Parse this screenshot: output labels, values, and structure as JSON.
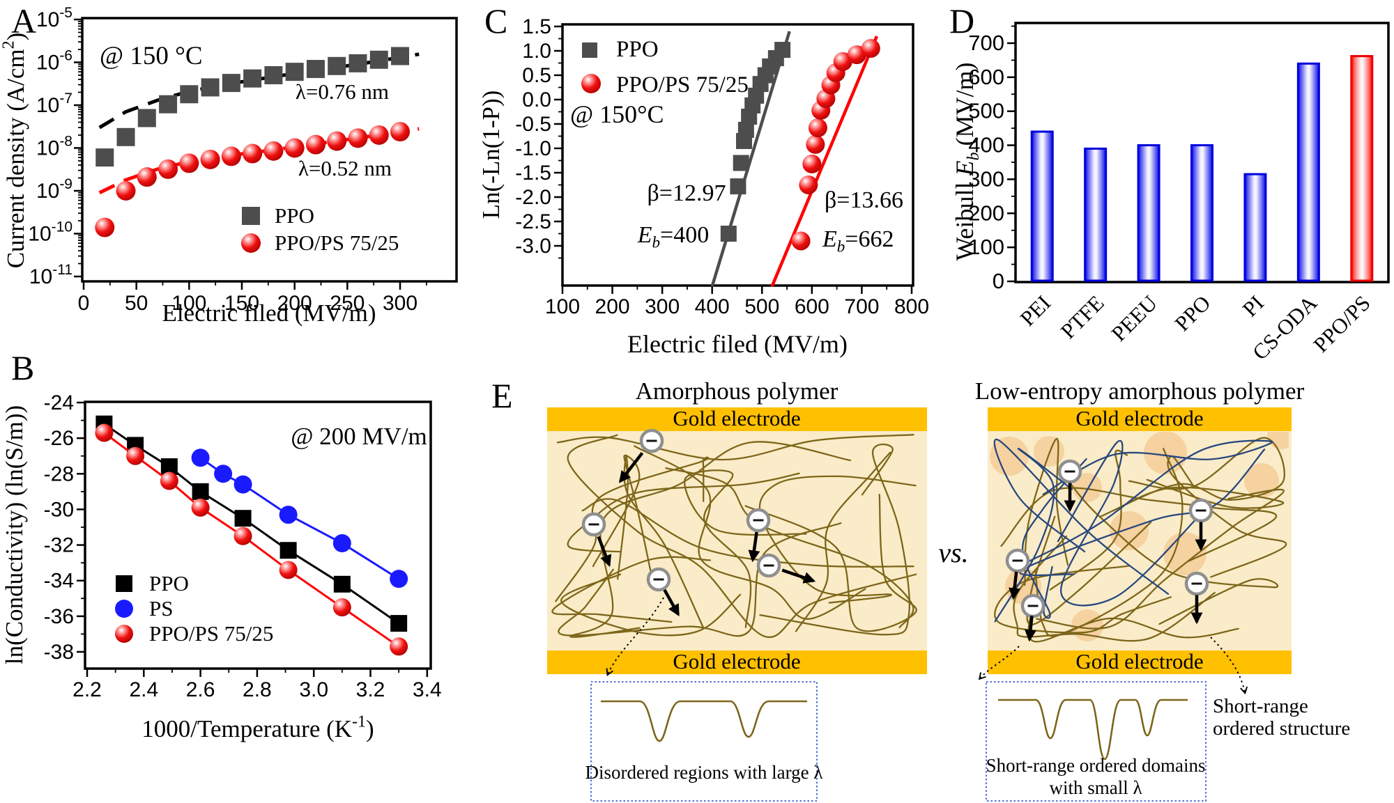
{
  "colors": {
    "ppo_gray": "#4d4d4d",
    "black": "#000000",
    "red": "#ff0000",
    "blue": "#1a1aff",
    "bar_blue_edge": "#0000dd",
    "bar_red_edge": "#ee0000",
    "gold": "#ffc000",
    "cream": "#faecc8",
    "chain_olive": "#7d661a",
    "chain_blue": "#27477f",
    "blob_orange": "#f3bd80",
    "inset_blue": "#3b5bd0",
    "electron_ring": "#8f8f8f"
  },
  "panels": {
    "a": {
      "label": "A",
      "annotation": "@ 150 °C",
      "xlabel": "Electric filed (MV/m)",
      "ylabel_parts": [
        {
          "t": "Current density (A/cm"
        },
        {
          "t": "2",
          "sup": true
        },
        {
          "t": ")"
        }
      ],
      "lambda_ppo": "λ=0.76 nm",
      "lambda_blend": "λ=0.52 nm",
      "legend": [
        "PPO",
        "PPO/PS 75/25"
      ]
    },
    "b": {
      "label": "B",
      "annotation": "@ 200 MV/m",
      "xlabel_parts": [
        {
          "t": "1000/Temperature (K"
        },
        {
          "t": "-1",
          "sup": true
        },
        {
          "t": ")"
        }
      ],
      "ylabel": "ln(Conductivity) (ln(S/m))",
      "legend": [
        "PPO",
        "PS",
        "PPO/PS 75/25"
      ]
    },
    "c": {
      "label": "C",
      "annotation": "@ 150°C",
      "xlabel": "Electric filed (MV/m)",
      "ylabel": "Ln(-Ln(1-P))",
      "legend": [
        "PPO",
        "PPO/PS 75/25"
      ],
      "beta_ppo": "β=12.97",
      "eb_ppo_parts": [
        {
          "t": "E",
          "i": true
        },
        {
          "t": "b",
          "sub": true,
          "i": true
        },
        {
          "t": "=400"
        }
      ],
      "beta_blend": "β=13.66",
      "eb_blend_parts": [
        {
          "t": "E",
          "i": true
        },
        {
          "t": "b",
          "sub": true,
          "i": true
        },
        {
          "t": "=662"
        }
      ]
    },
    "d": {
      "label": "D",
      "ylabel_parts": [
        {
          "t": "Weibull "
        },
        {
          "t": "E",
          "i": true
        },
        {
          "t": "b",
          "sub": true,
          "i": true
        },
        {
          "t": " (MV/m)"
        }
      ]
    },
    "e": {
      "label": "E",
      "title_left": "Amorphous polymer",
      "title_right": "Low-entropy amorphous polymer",
      "electrode": "Gold electrode",
      "vs": "vs.",
      "inset_left_caption": "Disordered regions with large λ",
      "inset_right_caption_1": "Short-range  ordered domains",
      "inset_right_caption_2": "with small λ",
      "side_label_1": "Short-range",
      "side_label_2": "ordered structure"
    }
  },
  "chart_data": [
    {
      "id": "A",
      "type": "scatter",
      "xscale": "linear",
      "yscale": "log",
      "title": "",
      "xlabel": "Electric filed (MV/m)",
      "ylabel": "Current density (A/cm2)",
      "annotation": "@ 150 °C",
      "xlim": [
        0,
        355
      ],
      "ylim": [
        1e-11,
        1e-05
      ],
      "x_ticks": [
        0,
        50,
        100,
        150,
        200,
        250,
        300
      ],
      "y_tick_exponents": [
        -5,
        -6,
        -7,
        -8,
        -9,
        -10,
        -11
      ],
      "series": [
        {
          "name": "PPO",
          "marker": "square",
          "color": "#4d4d4d",
          "x": [
            20,
            40,
            60,
            80,
            100,
            120,
            140,
            160,
            180,
            200,
            220,
            240,
            260,
            280,
            300
          ],
          "y": [
            6e-09,
            1.8e-08,
            5e-08,
            1.05e-07,
            1.8e-07,
            2.6e-07,
            3.3e-07,
            4.2e-07,
            5e-07,
            6e-07,
            7e-07,
            8.2e-07,
            9.5e-07,
            1.15e-06,
            1.4e-06
          ]
        },
        {
          "name": "PPO/PS 75/25",
          "marker": "sphere",
          "color": "#ff0000",
          "x": [
            20,
            40,
            60,
            80,
            100,
            120,
            140,
            160,
            180,
            200,
            220,
            240,
            260,
            280,
            300
          ],
          "y": [
            1.4e-10,
            1e-09,
            2.1e-09,
            3.2e-09,
            4.4e-09,
            5.4e-09,
            6.4e-09,
            7.4e-09,
            8.5e-09,
            1e-08,
            1.2e-08,
            1.45e-08,
            1.7e-08,
            2e-08,
            2.4e-08
          ]
        }
      ],
      "fit_lines": [
        {
          "series": "PPO",
          "label": "λ=0.76 nm",
          "style": "dashed",
          "color": "#000000",
          "x": [
            15,
            40,
            70,
            100,
            140,
            180,
            220,
            260,
            300,
            318
          ],
          "y": [
            3e-08,
            7e-08,
            1.3e-07,
            2.1e-07,
            3.2e-07,
            4.6e-07,
            6.5e-07,
            9e-07,
            1.3e-06,
            1.55e-06
          ]
        },
        {
          "series": "PPO/PS 75/25",
          "label": "λ=0.52 nm",
          "style": "dashed",
          "color": "#ff0000",
          "x": [
            15,
            40,
            70,
            100,
            140,
            180,
            220,
            260,
            300,
            318
          ],
          "y": [
            9e-10,
            1.8e-09,
            3.2e-09,
            4.8e-09,
            6.8e-09,
            9e-09,
            1.25e-08,
            1.7e-08,
            2.4e-08,
            2.8e-08
          ]
        }
      ]
    },
    {
      "id": "B",
      "type": "line-scatter",
      "xlabel": "1000/Temperature (K-1)",
      "ylabel": "ln(Conductivity) (ln(S/m))",
      "annotation": "@ 200 MV/m",
      "xlim": [
        2.2,
        3.4
      ],
      "ylim": [
        -39,
        -24
      ],
      "x_ticks": [
        2.2,
        2.4,
        2.6,
        2.8,
        3.0,
        3.2,
        3.4
      ],
      "y_ticks": [
        -24,
        -26,
        -28,
        -30,
        -32,
        -34,
        -36,
        -38
      ],
      "series": [
        {
          "name": "PPO",
          "marker": "square",
          "color": "#000000",
          "x": [
            2.26,
            2.37,
            2.49,
            2.6,
            2.75,
            2.91,
            3.1,
            3.3
          ],
          "y": [
            -25.2,
            -26.4,
            -27.6,
            -29.0,
            -30.5,
            -32.3,
            -34.2,
            -36.4
          ]
        },
        {
          "name": "PS",
          "marker": "circle",
          "color": "#1a1aff",
          "x": [
            2.6,
            2.68,
            2.75,
            2.91,
            3.1,
            3.3
          ],
          "y": [
            -27.1,
            -28.0,
            -28.6,
            -30.3,
            -31.9,
            -33.9
          ]
        },
        {
          "name": "PPO/PS 75/25",
          "marker": "sphere",
          "color": "#ff0000",
          "x": [
            2.26,
            2.37,
            2.49,
            2.6,
            2.75,
            2.91,
            3.1,
            3.3
          ],
          "y": [
            -25.7,
            -27.0,
            -28.4,
            -29.9,
            -31.5,
            -33.4,
            -35.5,
            -37.7
          ]
        }
      ]
    },
    {
      "id": "C",
      "type": "scatter",
      "xlabel": "Electric filed (MV/m)",
      "ylabel": "Ln(-Ln(1-P))",
      "annotation": "@ 150°C",
      "xlim": [
        100,
        800
      ],
      "ylim": [
        -3.83,
        1.5
      ],
      "x_ticks": [
        100,
        200,
        300,
        400,
        500,
        600,
        700,
        800
      ],
      "y_ticks": [
        1.5,
        1.0,
        0.5,
        0.0,
        -0.5,
        -1.0,
        -1.5,
        -2.0,
        -2.5,
        -3.0
      ],
      "series": [
        {
          "name": "PPO",
          "marker": "square",
          "color": "#4d4d4d",
          "beta": 12.97,
          "eb": 400,
          "x": [
            433,
            452,
            458,
            464,
            468,
            474,
            481,
            488,
            497,
            507,
            516,
            528,
            541
          ],
          "y": [
            -2.75,
            -1.78,
            -1.3,
            -0.85,
            -0.62,
            -0.35,
            -0.12,
            0.08,
            0.32,
            0.5,
            0.68,
            0.85,
            1.02
          ]
        },
        {
          "name": "PPO/PS 75/25",
          "marker": "sphere",
          "color": "#ff0000",
          "beta": 13.66,
          "eb": 662,
          "x": [
            578,
            593,
            600,
            607,
            612,
            618,
            628,
            638,
            648,
            662,
            690,
            718
          ],
          "y": [
            -2.9,
            -1.75,
            -1.32,
            -0.92,
            -0.58,
            -0.22,
            0.02,
            0.3,
            0.55,
            0.78,
            0.92,
            1.05
          ]
        }
      ],
      "fit_lines": [
        {
          "series": "PPO",
          "color": "#4d4d4d",
          "x": [
            400,
            555
          ],
          "y": [
            -3.83,
            1.4
          ]
        },
        {
          "series": "PPO/PS 75/25",
          "color": "#ff0000",
          "x": [
            520,
            730
          ],
          "y": [
            -3.83,
            1.3
          ]
        }
      ]
    },
    {
      "id": "D",
      "type": "bar",
      "ylabel": "Weibull Eb (MV/m)",
      "categories": [
        "PEI",
        "PTFE",
        "PEEU",
        "PPO",
        "PI",
        "CS-ODA",
        "PPO/PS"
      ],
      "values": [
        440,
        390,
        400,
        400,
        315,
        640,
        662
      ],
      "bar_colors": [
        "blue",
        "blue",
        "blue",
        "blue",
        "blue",
        "blue",
        "red"
      ],
      "ylim": [
        0,
        760
      ],
      "y_ticks": [
        0,
        100,
        200,
        300,
        400,
        500,
        600,
        700
      ]
    }
  ]
}
